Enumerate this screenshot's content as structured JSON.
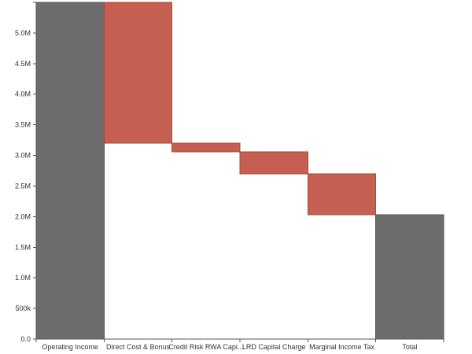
{
  "chart_data": {
    "type": "waterfall",
    "title": "",
    "xlabel": "",
    "ylabel": "",
    "ylim": [
      0,
      5500000
    ],
    "grid": false,
    "legend": "none",
    "yticks": [
      {
        "value": 0,
        "label": "0.0"
      },
      {
        "value": 500000,
        "label": "500k"
      },
      {
        "value": 1000000,
        "label": "1.0M"
      },
      {
        "value": 1500000,
        "label": "1.5M"
      },
      {
        "value": 2000000,
        "label": "2.0M"
      },
      {
        "value": 2500000,
        "label": "2.5M"
      },
      {
        "value": 3000000,
        "label": "3.0M"
      },
      {
        "value": 3500000,
        "label": "3.5M"
      },
      {
        "value": 4000000,
        "label": "4.0M"
      },
      {
        "value": 4500000,
        "label": "4.5M"
      },
      {
        "value": 5000000,
        "label": "5.0M"
      }
    ],
    "categories": [
      "Operating Income",
      "Direct Cost & Bonus",
      "Credit Risk RWA Capi...",
      "LRD Capital Charge",
      "Marginal Income Tax",
      "Total"
    ],
    "bars": [
      {
        "category": "Operating Income",
        "kind": "total",
        "start": 0,
        "end": 5500000
      },
      {
        "category": "Direct Cost & Bonus",
        "kind": "decrease",
        "start": 5500000,
        "end": 3200000
      },
      {
        "category": "Credit Risk RWA Capi...",
        "kind": "decrease",
        "start": 3200000,
        "end": 3060000
      },
      {
        "category": "LRD Capital Charge",
        "kind": "decrease",
        "start": 3060000,
        "end": 2700000
      },
      {
        "category": "Marginal Income Tax",
        "kind": "decrease",
        "start": 2700000,
        "end": 2030000
      },
      {
        "category": "Total",
        "kind": "total",
        "start": 0,
        "end": 2030000
      }
    ],
    "colors": {
      "total": "#6d6d6f",
      "total_stroke": "#555557",
      "decrease": "#c45f51",
      "decrease_stroke": "#a8483b",
      "axis": "#555555",
      "text": "#333333"
    }
  }
}
